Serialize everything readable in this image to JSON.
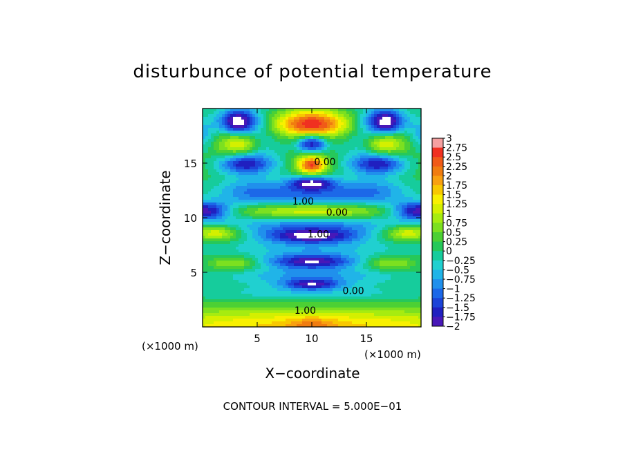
{
  "chart_data": {
    "type": "heatmap",
    "title": "disturbunce of potential temperature",
    "xlabel": "X−coordinate",
    "ylabel": "Z−coordinate",
    "x_unit": "(×1000 m)",
    "y_unit": "(×1000 m)",
    "xlim": [
      0,
      20
    ],
    "ylim": [
      0,
      20
    ],
    "x_ticks": [
      "5",
      "10",
      "15"
    ],
    "x_tick_values": [
      5,
      10,
      15
    ],
    "y_ticks": [
      "5",
      "10",
      "15"
    ],
    "y_tick_values": [
      5,
      10,
      15
    ],
    "footer": "CONTOUR INTERVAL = 5.000E−01",
    "colorbar": {
      "min": -2,
      "max": 3,
      "step": 0.25,
      "labels": [
        "3",
        "2.75",
        "2.5",
        "2.25",
        "2",
        "1.75",
        "1.5",
        "1.25",
        "1",
        "0.75",
        "0.5",
        "0.25",
        "0",
        "−0.25",
        "−0.5",
        "−0.75",
        "−1",
        "−1.25",
        "−1.5",
        "−1.75",
        "−2"
      ],
      "colors": [
        "#f5a0a0",
        "#f03020",
        "#f05a18",
        "#f07c10",
        "#f8a010",
        "#f8c800",
        "#f8f000",
        "#d4f000",
        "#a6ec10",
        "#7ce020",
        "#4cd034",
        "#26c85a",
        "#16cc9c",
        "#20d0d0",
        "#20b4e8",
        "#2090ec",
        "#1c68e8",
        "#1c44d8",
        "#2020c0",
        "#4818b8",
        "#7020b0"
      ]
    },
    "contour_labels": [
      {
        "text": "0.00",
        "x": 11.2,
        "z": 14.8
      },
      {
        "text": "1.00",
        "x": 9.2,
        "z": 11.2
      },
      {
        "text": "0.00",
        "x": 12.3,
        "z": 10.2
      },
      {
        "text": "1.00",
        "x": 10.6,
        "z": 8.2
      },
      {
        "text": "0.00",
        "x": 13.8,
        "z": 3.0
      },
      {
        "text": "1.00",
        "x": 9.4,
        "z": 1.2
      }
    ],
    "features": [
      {
        "x": 10.0,
        "z": 18.6,
        "v": 2.4,
        "sx": 2.6,
        "sz": 0.85
      },
      {
        "x": 10.0,
        "z": 14.8,
        "v": 2.3,
        "sx": 0.95,
        "sz": 0.6
      },
      {
        "x": 3.4,
        "z": 16.8,
        "v": 1.5,
        "sx": 1.2,
        "sz": 0.7
      },
      {
        "x": 16.6,
        "z": 16.8,
        "v": 1.5,
        "sx": 1.2,
        "sz": 0.7
      },
      {
        "x": 3.2,
        "z": 18.8,
        "v": -2.2,
        "sx": 1.3,
        "sz": 0.8
      },
      {
        "x": 16.8,
        "z": 18.8,
        "v": -2.2,
        "sx": 1.3,
        "sz": 0.8
      },
      {
        "x": 10.0,
        "z": 16.8,
        "v": -2.3,
        "sx": 1.0,
        "sz": 0.6
      },
      {
        "x": 0.0,
        "z": 17.6,
        "v": -1.0,
        "sx": 0.8,
        "sz": 1.2
      },
      {
        "x": 20.0,
        "z": 17.6,
        "v": -1.0,
        "sx": 0.8,
        "sz": 1.2
      },
      {
        "x": 3.8,
        "z": 14.9,
        "v": -1.5,
        "sx": 1.8,
        "sz": 0.6
      },
      {
        "x": 16.2,
        "z": 14.9,
        "v": -1.5,
        "sx": 1.8,
        "sz": 0.6
      },
      {
        "x": 10.0,
        "z": 13.2,
        "v": -1.9,
        "sx": 1.5,
        "sz": 0.45
      },
      {
        "x": 10.0,
        "z": 12.2,
        "v": -1.1,
        "sx": 4.8,
        "sz": 0.7
      },
      {
        "x": 4.0,
        "z": 12.5,
        "v": -0.5,
        "sx": 2.0,
        "sz": 1.0
      },
      {
        "x": 16.0,
        "z": 12.5,
        "v": -0.5,
        "sx": 2.0,
        "sz": 1.0
      },
      {
        "x": 10.0,
        "z": 10.6,
        "v": 1.2,
        "sx": 5.0,
        "sz": 0.45
      },
      {
        "x": 0.3,
        "z": 10.6,
        "v": -2.0,
        "sx": 1.6,
        "sz": 0.6
      },
      {
        "x": 19.7,
        "z": 10.6,
        "v": -2.0,
        "sx": 1.6,
        "sz": 0.6
      },
      {
        "x": 10.0,
        "z": 9.2,
        "v": -1.0,
        "sx": 5.5,
        "sz": 0.55
      },
      {
        "x": 10.0,
        "z": 8.3,
        "v": -1.9,
        "sx": 3.0,
        "sz": 0.45
      },
      {
        "x": 1.2,
        "z": 8.6,
        "v": 1.3,
        "sx": 1.6,
        "sz": 0.5
      },
      {
        "x": 18.8,
        "z": 8.6,
        "v": 1.3,
        "sx": 1.6,
        "sz": 0.5
      },
      {
        "x": 10.0,
        "z": 7.2,
        "v": -0.6,
        "sx": 5.5,
        "sz": 0.6
      },
      {
        "x": 10.0,
        "z": 6.0,
        "v": -1.9,
        "sx": 2.8,
        "sz": 0.45
      },
      {
        "x": 2.8,
        "z": 5.8,
        "v": 0.9,
        "sx": 1.6,
        "sz": 0.45
      },
      {
        "x": 17.2,
        "z": 5.8,
        "v": 0.9,
        "sx": 1.6,
        "sz": 0.45
      },
      {
        "x": 10.0,
        "z": 4.7,
        "v": -0.8,
        "sx": 5.0,
        "sz": 0.6
      },
      {
        "x": 10.0,
        "z": 3.9,
        "v": -1.6,
        "sx": 1.8,
        "sz": 0.35
      },
      {
        "x": 10.0,
        "z": 3.0,
        "v": -0.5,
        "sx": 7.0,
        "sz": 0.55
      },
      {
        "x": 10.0,
        "z": 0.0,
        "v": 1.6,
        "sx": 14.0,
        "sz": 1.3
      },
      {
        "x": 10.0,
        "z": 0.1,
        "v": 0.6,
        "sx": 1.5,
        "sz": 0.6
      }
    ]
  }
}
